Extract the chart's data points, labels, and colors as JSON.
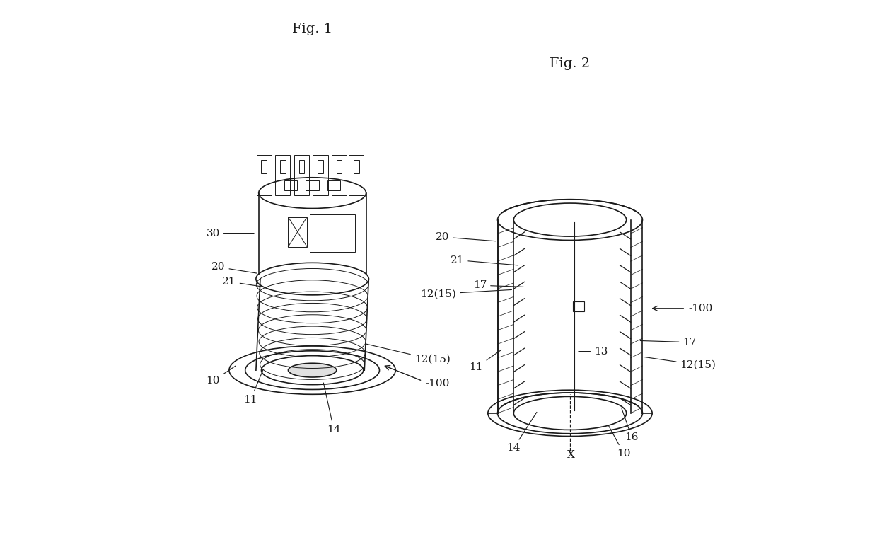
{
  "bg_color": "#ffffff",
  "line_color": "#1a1a1a",
  "fig1_caption": "Fig. 1",
  "fig2_caption": "Fig. 2"
}
